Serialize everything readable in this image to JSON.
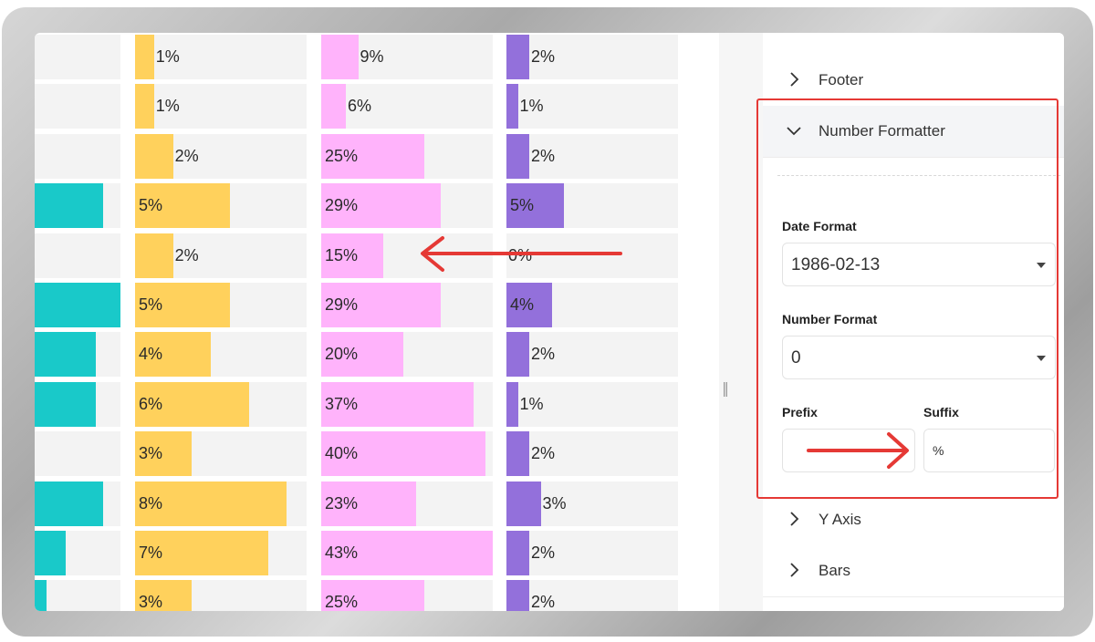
{
  "colors": {
    "teal": "#19c9c9",
    "yellow": "#ffd15c",
    "pink": "#ffb3fb",
    "purple": "#9370db",
    "annotation": "#e53935"
  },
  "chart_data": {
    "type": "bar",
    "series": [
      {
        "values": [
          null,
          null,
          null,
          0.8,
          null,
          1.0,
          0.72,
          0.72,
          null,
          0.8,
          0.38,
          0.16
        ]
      },
      {
        "labels": [
          "1%",
          "1%",
          "2%",
          "5%",
          "2%",
          "5%",
          "4%",
          "6%",
          "3%",
          "8%",
          "7%",
          "3%"
        ],
        "values": [
          1,
          1,
          2,
          5,
          2,
          5,
          4,
          6,
          3,
          8,
          7,
          3
        ]
      },
      {
        "labels": [
          "9%",
          "6%",
          "25%",
          "29%",
          "15%",
          "29%",
          "20%",
          "37%",
          "40%",
          "23%",
          "43%",
          "25%"
        ],
        "values": [
          9,
          6,
          25,
          29,
          15,
          29,
          20,
          37,
          40,
          23,
          43,
          25
        ]
      },
      {
        "labels": [
          "2%",
          "1%",
          "2%",
          "5%",
          "0%",
          "4%",
          "2%",
          "1%",
          "2%",
          "3%",
          "2%",
          "2%"
        ],
        "values": [
          2,
          1,
          2,
          5,
          0,
          4,
          2,
          1,
          2,
          3,
          2,
          2
        ]
      }
    ]
  },
  "panel": {
    "sections": {
      "footer": "Footer",
      "number_formatter": "Number Formatter",
      "y_axis": "Y Axis",
      "bars": "Bars"
    },
    "date_format": {
      "label": "Date Format",
      "value": "1986-02-13"
    },
    "number_format": {
      "label": "Number Format",
      "value": "0"
    },
    "prefix": {
      "label": "Prefix",
      "value": ""
    },
    "suffix": {
      "label": "Suffix",
      "value": "%"
    }
  }
}
